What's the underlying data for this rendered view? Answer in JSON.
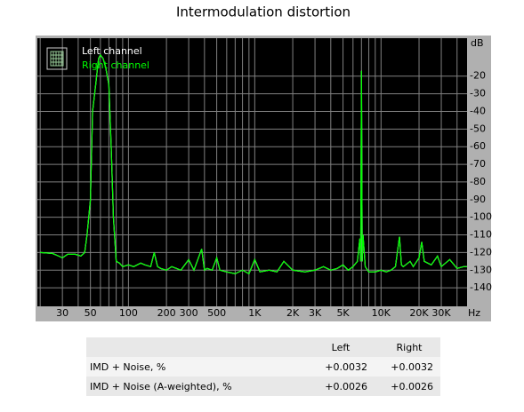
{
  "chart_data": {
    "type": "line",
    "title": "Intermodulation distortion",
    "x_label": "Hz",
    "y_label": "dB",
    "xscale": "log",
    "xlim": [
      19,
      48000
    ],
    "ylim": [
      -150,
      0
    ],
    "xticks": [
      30,
      50,
      100,
      200,
      300,
      500,
      {
        "value": 1000,
        "label": "1K"
      },
      {
        "value": 2000,
        "label": "2K"
      },
      {
        "value": 3000,
        "label": "3K"
      },
      {
        "value": 5000,
        "label": "5K"
      },
      {
        "value": 10000,
        "label": "10K"
      },
      {
        "value": 20000,
        "label": "20K"
      },
      {
        "value": 30000,
        "label": "30K"
      }
    ],
    "xgrid": [
      20,
      30,
      40,
      50,
      60,
      70,
      80,
      90,
      100,
      200,
      300,
      400,
      500,
      600,
      700,
      800,
      900,
      1000,
      2000,
      3000,
      4000,
      5000,
      6000,
      7000,
      8000,
      9000,
      10000,
      20000,
      30000,
      40000
    ],
    "yticks": [
      -20,
      -30,
      -40,
      -50,
      -60,
      -70,
      -80,
      -90,
      -100,
      -110,
      -120,
      -130,
      -140
    ],
    "grid": true,
    "legend": "top-left",
    "x": [
      20,
      25,
      28,
      30,
      33,
      38,
      42,
      45,
      47,
      50,
      52,
      55,
      58,
      60,
      63,
      66,
      70,
      73,
      76,
      80,
      85,
      90,
      100,
      110,
      125,
      135,
      150,
      160,
      170,
      180,
      200,
      220,
      240,
      260,
      300,
      330,
      380,
      400,
      420,
      460,
      500,
      530,
      600,
      700,
      800,
      900,
      1000,
      1100,
      1300,
      1500,
      1700,
      2000,
      2500,
      3000,
      3500,
      4000,
      4500,
      5000,
      5500,
      6000,
      6500,
      6800,
      6900,
      7000,
      7100,
      7200,
      7500,
      8000,
      9000,
      10000,
      11000,
      12000,
      13000,
      14000,
      14500,
      15000,
      17000,
      18000,
      20000,
      21000,
      22000,
      25000,
      28000,
      30000,
      35000,
      40000,
      45000,
      48000
    ],
    "series": [
      {
        "name": "Left channel",
        "color": "#ffffff",
        "values": [
          -120,
          -120.5,
          -122,
          -123,
          -121,
          -121,
          -122,
          -120,
          -110,
          -90,
          -40,
          -25,
          -10,
          -8,
          -10,
          -15,
          -25,
          -60,
          -100,
          -125,
          -126,
          -128,
          -127,
          -128,
          -126,
          -127,
          -128,
          -120,
          -128,
          -129,
          -130,
          -128,
          -129,
          -130,
          -124,
          -130,
          -118,
          -130,
          -129,
          -130,
          -123,
          -130,
          -131,
          -132,
          -130,
          -132,
          -124,
          -131,
          -130,
          -131,
          -125,
          -130,
          -131,
          -130,
          -128,
          -130,
          -129,
          -127,
          -130,
          -128,
          -125,
          -112,
          -125,
          -17,
          -125,
          -110,
          -128,
          -131,
          -131,
          -130,
          -131,
          -130,
          -128,
          -111,
          -127,
          -128,
          -125,
          -128,
          -123,
          -114,
          -125,
          -127,
          -122,
          -128,
          -124,
          -129,
          -128,
          -128
        ]
      },
      {
        "name": "Right channel",
        "color": "#00ff00",
        "values": [
          -120,
          -120.5,
          -122,
          -123,
          -121,
          -121,
          -122,
          -120,
          -110,
          -90,
          -40,
          -25,
          -10,
          -8,
          -10,
          -15,
          -25,
          -60,
          -100,
          -125,
          -126,
          -128,
          -127,
          -128,
          -126,
          -127,
          -128,
          -120,
          -128,
          -129,
          -130,
          -128,
          -129,
          -130,
          -124,
          -130,
          -118,
          -130,
          -129,
          -130,
          -123,
          -130,
          -131,
          -132,
          -130,
          -132,
          -124,
          -131,
          -130,
          -131,
          -125,
          -130,
          -131,
          -130,
          -128,
          -130,
          -129,
          -127,
          -130,
          -128,
          -125,
          -112,
          -125,
          -17,
          -125,
          -110,
          -128,
          -131,
          -131,
          -130,
          -131,
          -130,
          -128,
          -111,
          -127,
          -128,
          -125,
          -128,
          -123,
          -114,
          -125,
          -127,
          -122,
          -128,
          -124,
          -129,
          -128,
          -128
        ]
      }
    ]
  },
  "table": {
    "header": [
      "Left",
      "Right"
    ],
    "rows": [
      [
        "IMD + Noise, %",
        "+0.0032",
        "+0.0032"
      ],
      [
        "IMD + Noise (A-weighted), %",
        "+0.0026",
        "+0.0026"
      ]
    ]
  }
}
